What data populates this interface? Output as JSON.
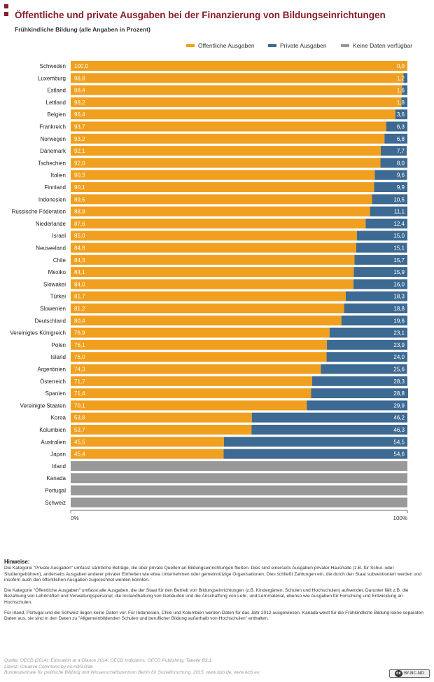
{
  "header": {
    "title": "Öffentliche und private Ausgaben bei der Finanzierung von Bildungseinrichtungen",
    "subtitle": "Frühkindliche Bildung (alle Angaben in Prozent)",
    "accent_color": "#8a1c2b"
  },
  "legend": {
    "public": "Öffentliche Ausgaben",
    "private": "Private Ausgaben",
    "nodata": "Keine Daten verfügbar"
  },
  "chart_data": {
    "type": "bar",
    "stacked": true,
    "orientation": "horizontal",
    "categories": [
      "Schweden",
      "Luxemburg",
      "Estland",
      "Lettland",
      "Belgien",
      "Frankreich",
      "Norwegen",
      "Dänemark",
      "Tschechien",
      "Italien",
      "Finnland",
      "Indonesien",
      "Russische Föderation",
      "Niederlande",
      "Israel",
      "Neuseeland",
      "Chile",
      "Mexiko",
      "Slowakei",
      "Türkei",
      "Slowenien",
      "Deutschland",
      "Vereinigtes Königreich",
      "Polen",
      "Island",
      "Argentinien",
      "Österreich",
      "Spanien",
      "Vereinigte Staaten",
      "Korea",
      "Kolumbien",
      "Australien",
      "Japan",
      "Irland",
      "Kanada",
      "Portugal",
      "Schweiz"
    ],
    "series": [
      {
        "name": "Öffentliche Ausgaben",
        "color": "#f0a01e",
        "values": [
          100.0,
          98.8,
          98.4,
          98.2,
          96.4,
          93.7,
          93.2,
          92.1,
          92.0,
          90.3,
          90.1,
          89.5,
          88.9,
          87.6,
          85.0,
          84.8,
          84.3,
          84.1,
          84.0,
          81.7,
          81.2,
          80.4,
          76.9,
          76.1,
          76.0,
          74.3,
          71.7,
          71.4,
          70.1,
          53.8,
          53.7,
          45.5,
          45.4,
          null,
          null,
          null,
          null
        ],
        "labels": [
          "100,0",
          "98,8",
          "98,4",
          "98,2",
          "96,4",
          "93,7",
          "93,2",
          "92,1",
          "92,0",
          "90,3",
          "90,1",
          "89,5",
          "88,9",
          "87,6",
          "85,0",
          "84,8",
          "84,3",
          "84,1",
          "84,0",
          "81,7",
          "81,2",
          "80,4",
          "76,9",
          "76,1",
          "76,0",
          "74,3",
          "71,7",
          "71,4",
          "70,1",
          "53,8",
          "53,7",
          "45,5",
          "45,4",
          "",
          "",
          "",
          ""
        ]
      },
      {
        "name": "Private Ausgaben",
        "color": "#3d6a92",
        "values": [
          0.0,
          1.2,
          1.6,
          1.8,
          3.6,
          6.3,
          6.8,
          7.7,
          8.0,
          9.6,
          9.9,
          10.5,
          11.1,
          12.4,
          15.0,
          15.1,
          15.7,
          15.9,
          16.0,
          18.3,
          18.8,
          19.6,
          23.1,
          23.9,
          24.0,
          25.6,
          28.3,
          28.8,
          29.9,
          46.2,
          46.3,
          54.5,
          54.6,
          null,
          null,
          null,
          null
        ],
        "labels": [
          "0,0",
          "1,2",
          "1,6",
          "1,8",
          "3,6",
          "6,3",
          "6,8",
          "7,7",
          "8,0",
          "9,6",
          "9,9",
          "10,5",
          "11,1",
          "12,4",
          "15,0",
          "15,1",
          "15,7",
          "15,9",
          "16,0",
          "18,3",
          "18,8",
          "19,6",
          "23,1",
          "23,9",
          "24,0",
          "25,6",
          "28,3",
          "28,8",
          "29,9",
          "46,2",
          "46,3",
          "54,5",
          "54,6",
          "",
          "",
          "",
          ""
        ]
      },
      {
        "name": "Keine Daten verfügbar",
        "color": "#999999",
        "values": [
          null,
          null,
          null,
          null,
          null,
          null,
          null,
          null,
          null,
          null,
          null,
          null,
          null,
          null,
          null,
          null,
          null,
          null,
          null,
          null,
          null,
          null,
          null,
          null,
          null,
          null,
          null,
          null,
          null,
          null,
          null,
          null,
          null,
          100,
          100,
          100,
          100
        ]
      }
    ],
    "xlim": [
      0,
      100
    ],
    "tick_labels": [
      "0%",
      "100%"
    ],
    "legend_position": "top-right",
    "grid": false
  },
  "notes": {
    "heading": "Hinweise:",
    "p1": "Die Kategorie \"Private Ausgaben\" umfasst sämtliche Beträge, die über private Quellen an Bildungseinrichtungen fließen. Dies sind einerseits Ausgaben privater Haushalte (z.B. für Schul- oder Studiengebühren), anderseits Ausgaben anderer privater Einheiten wie etwa Unternehmen oder gemeinnützige Organisationen. Dies schließt Zahlungen ein, die durch den Staat subventioniert werden und insofern auch den öffentlichen Ausgaben zugerechnet werden könnten.",
    "p2": "Die Kategorie \"Öffentliche Ausgaben\" umfasst alle Ausgaben, die der Staat für den Betrieb von Bildungseinrichtungen (z.B. Kindergärten, Schulen und Hochschulen) aufwendet. Darunter fällt z.B. die Bezahlung von Lehrkräften und Verwaltungspersonal, die Instandhaltung von Gebäuden und die Anschaffung von Lehr- und Lernmaterial, ebenso wie Ausgaben für Forschung und Entwicklung an Hochschulen.",
    "p3": "Für Irland, Portugal und die Schweiz liegen keine Daten vor. Für Indonesien, Chile und Kolumbien werden Daten für das Jahr 2012 ausgewiesen. Kanada weist für die Frühkindliche Bildung keine separaten Daten aus, sie sind in den Daten zu \"Allgemeinbildenden Schulen und beruflicher Bildung außerhalb von Hochschulen\" enthalten."
  },
  "source": {
    "line1": "Quelle: OECD (2014): Education at a Glance 2014: OECD Indicators, OECD Publishing, Tabelle B3.1.",
    "line2": "Lizenz: Creative Commons by-nc-nd/3.0/de",
    "line3": "Bundeszentrale für politische Bildung und Wissenschaftszentrum Berlin für Sozialforschung, 2015, www.bpb.de, www.wzb.eu"
  },
  "license_badge": {
    "logo": "cc",
    "text": "BY-NC-ND"
  }
}
